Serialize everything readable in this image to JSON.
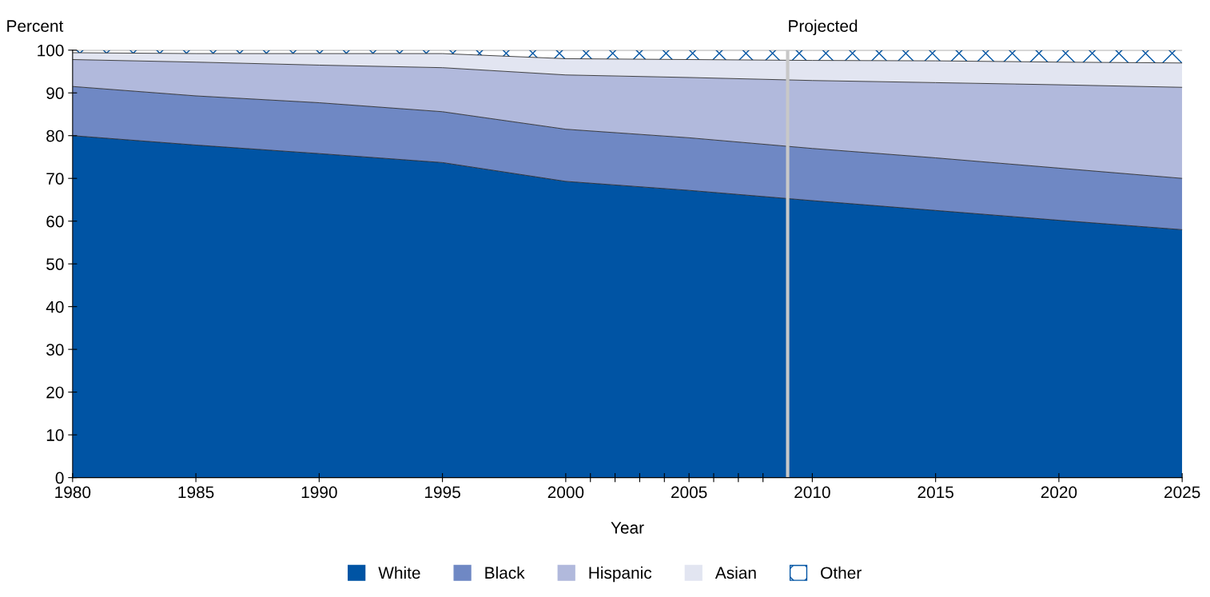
{
  "chart_data": {
    "type": "area",
    "stacked": true,
    "xlabel": "Year",
    "ylabel": "Percent",
    "x": [
      1980,
      1985,
      1990,
      1995,
      2000,
      2005,
      2010,
      2015,
      2020,
      2025
    ],
    "series": [
      {
        "name": "White",
        "color": "#0054a4",
        "values": [
          80,
          77.8,
          75.8,
          73.7,
          69.3,
          67.2,
          64.8,
          62.5,
          60.2,
          58.0
        ]
      },
      {
        "name": "Black",
        "color": "#6f88c4",
        "values": [
          11.5,
          11.5,
          11.9,
          11.9,
          12.2,
          12.3,
          12.2,
          12.3,
          12.2,
          12.0
        ]
      },
      {
        "name": "Hispanic",
        "color": "#b1b9dc",
        "values": [
          6.3,
          7.9,
          8.8,
          10.3,
          12.7,
          14.1,
          15.9,
          17.6,
          19.5,
          21.3
        ]
      },
      {
        "name": "Asian",
        "color": "#e2e5f1",
        "values": [
          1.6,
          2.0,
          2.7,
          3.3,
          3.8,
          4.2,
          4.7,
          5.1,
          5.3,
          5.7
        ]
      },
      {
        "name": "Other",
        "color": "#ffffff",
        "values": [
          0.6,
          0.8,
          0.8,
          0.8,
          2.0,
          2.2,
          2.4,
          2.5,
          2.8,
          3.0
        ]
      }
    ],
    "xlim": [
      1980,
      2025
    ],
    "xticks": [
      1980,
      1985,
      1990,
      1995,
      2000,
      {
        "value": 2001,
        "label": null
      },
      {
        "value": 2002,
        "label": null
      },
      {
        "value": 2003,
        "label": null
      },
      {
        "value": 2004,
        "label": null
      },
      2005,
      {
        "value": 2006,
        "label": null
      },
      {
        "value": 2007,
        "label": null
      },
      {
        "value": 2008,
        "label": null
      },
      2010,
      2015,
      2020,
      2025
    ],
    "ylim": [
      0,
      100
    ],
    "yticks": [
      0,
      10,
      20,
      30,
      40,
      50,
      60,
      70,
      80,
      90,
      100
    ],
    "ref_lines": [
      {
        "axis": "x",
        "value": 2009,
        "label": "Projected",
        "color": "#c8c8c8"
      }
    ],
    "grid": false,
    "legend": "bottom"
  }
}
